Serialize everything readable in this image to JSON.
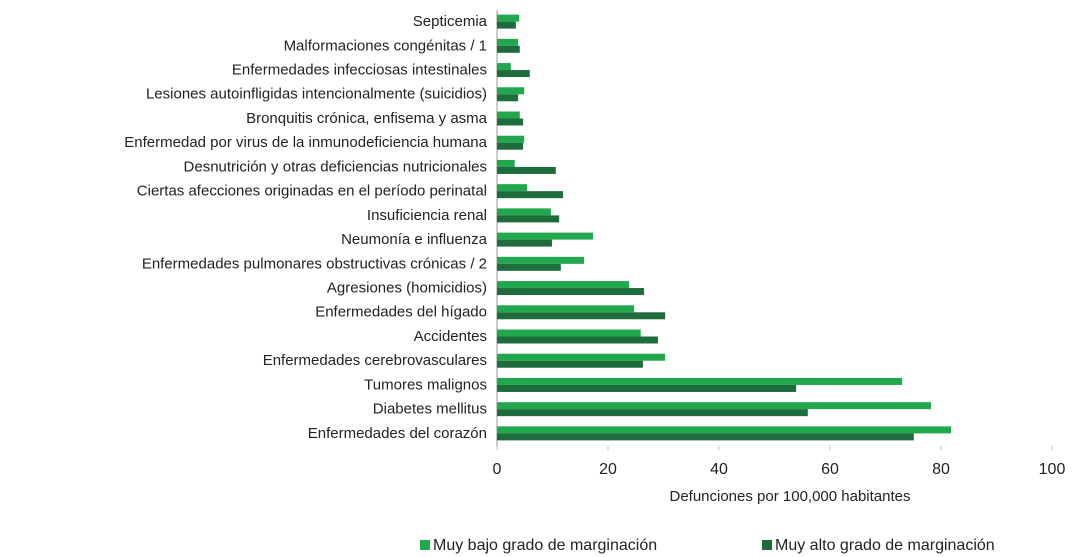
{
  "chart_data": {
    "type": "hbar",
    "categories": [
      "Septicemia",
      "Malformaciones congénitas / 1",
      "Enfermedades infecciosas intestinales",
      "Lesiones autoinfligidas intencionalmente (suicidios)",
      "Bronquitis crónica, enfisema y asma",
      "Enfermedad por virus de la inmunodeficiencia humana",
      "Desnutrición y otras deficiencias nutricionales",
      "Ciertas afecciones originadas en el período perinatal",
      "Insuficiencia renal",
      "Neumonía e influenza",
      "Enfermedades pulmonares obstructivas crónicas / 2",
      "Agresiones (homicidios)",
      "Enfermedades del hígado",
      "Accidentes",
      "Enfermedades cerebrovasculares",
      "Tumores malignos",
      "Diabetes mellitus",
      "Enfermedades del corazón"
    ],
    "series": [
      {
        "name": "Muy bajo grado de marginación",
        "color": "#22a84c",
        "values": [
          4.0,
          3.8,
          2.5,
          4.9,
          4.1,
          4.9,
          3.2,
          5.4,
          9.7,
          17.3,
          15.7,
          23.8,
          24.7,
          25.9,
          30.3,
          73.0,
          78.2,
          81.8
        ]
      },
      {
        "name": "Muy alto grado de marginación",
        "color": "#1e6b3c",
        "values": [
          3.4,
          4.1,
          5.9,
          3.8,
          4.7,
          4.7,
          10.6,
          11.9,
          11.2,
          9.9,
          11.5,
          26.5,
          30.3,
          29.0,
          26.3,
          53.9,
          56.0,
          75.1
        ]
      }
    ],
    "xlabel": "Defunciones por 100,000 habitantes",
    "xlim": [
      0,
      100
    ],
    "xticks": [
      0,
      20,
      40,
      60,
      80,
      100
    ],
    "legend": "bottom"
  }
}
